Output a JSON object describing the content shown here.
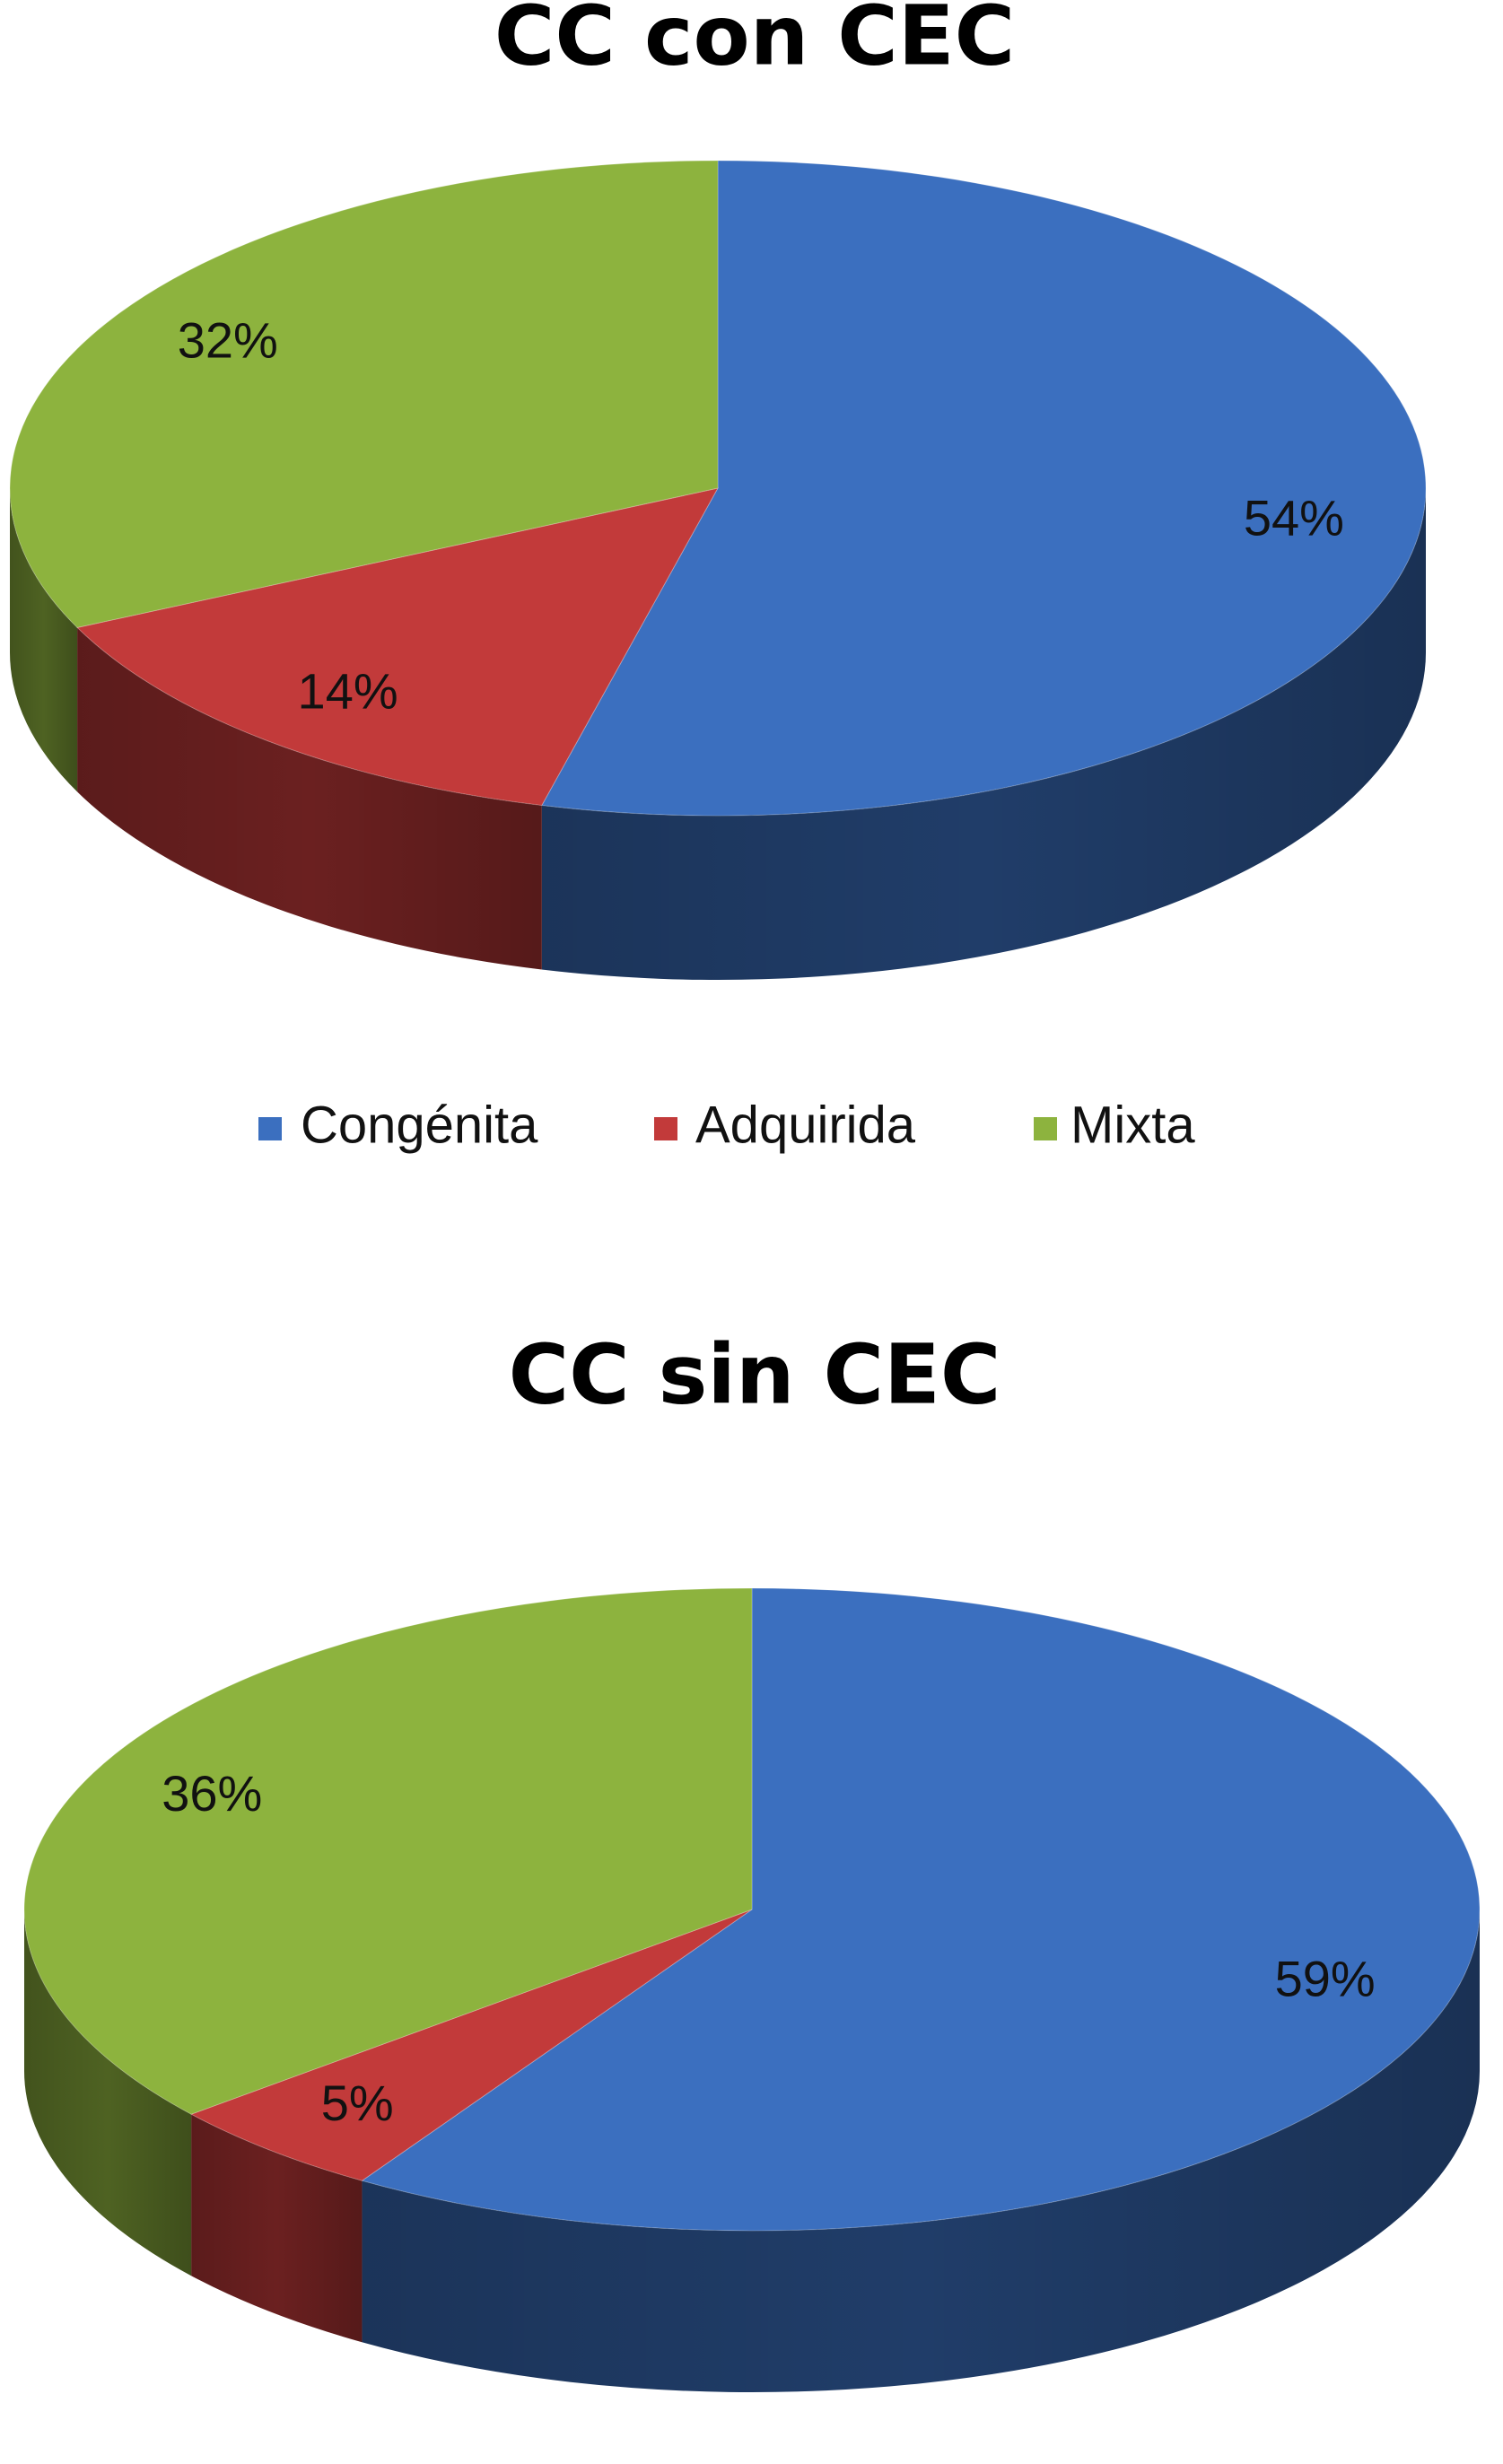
{
  "chart_data": [
    {
      "type": "pie",
      "title": "CC con CEC",
      "values": [
        54,
        14,
        32
      ],
      "value_labels": [
        "54%",
        "14%",
        "32%"
      ]
    },
    {
      "type": "pie",
      "title": "CC sin CEC",
      "values": [
        59,
        5,
        36
      ],
      "value_labels": [
        "59%",
        "5%",
        "36%"
      ]
    }
  ],
  "legend": {
    "labels": [
      "Congénita",
      "Adquirida",
      "Mixta"
    ],
    "colors": [
      "#3b6fbf",
      "#c23a3a",
      "#8db33e"
    ]
  }
}
